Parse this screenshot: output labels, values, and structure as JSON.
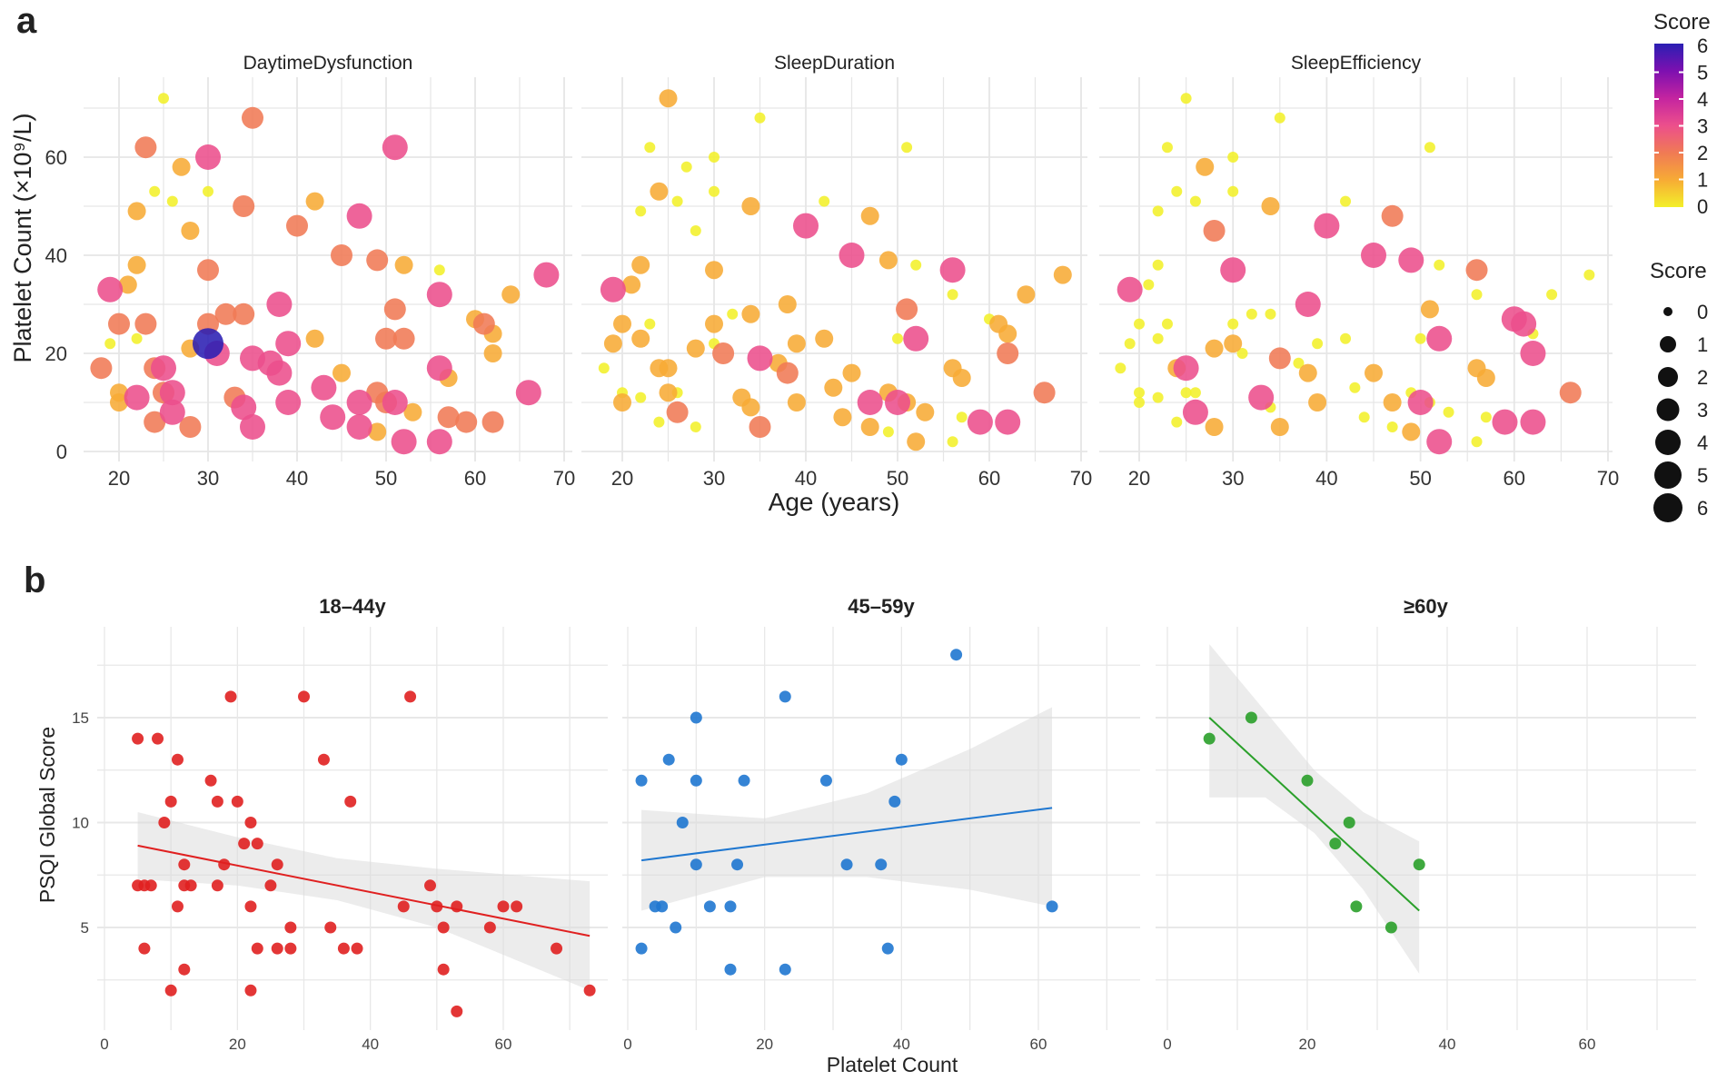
{
  "chart_data": [
    {
      "panel_label": "a",
      "type": "scatter",
      "xlabel": "Age (years)",
      "ylabel": "Platelet Count (×10⁹/L)",
      "xlim": [
        16,
        71
      ],
      "ylim": [
        -2,
        75
      ],
      "x_ticks": [
        20,
        30,
        40,
        50,
        60,
        70
      ],
      "y_ticks": [
        0,
        20,
        40,
        60
      ],
      "grid": true,
      "facets": [
        "DaytimeDysfunction",
        "SleepDuration",
        "SleepEfficiency"
      ],
      "points_age_platelet": [
        [
          25,
          72
        ],
        [
          35,
          68
        ],
        [
          23,
          62
        ],
        [
          51,
          62
        ],
        [
          30,
          60
        ],
        [
          27,
          58
        ],
        [
          24,
          53
        ],
        [
          30,
          53
        ],
        [
          26,
          51
        ],
        [
          22,
          49
        ],
        [
          34,
          50
        ],
        [
          42,
          51
        ],
        [
          47,
          48
        ],
        [
          28,
          45
        ],
        [
          40,
          46
        ],
        [
          45,
          40
        ],
        [
          49,
          39
        ],
        [
          52,
          38
        ],
        [
          22,
          38
        ],
        [
          30,
          37
        ],
        [
          56,
          37
        ],
        [
          68,
          36
        ],
        [
          21,
          34
        ],
        [
          19,
          33
        ],
        [
          56,
          32
        ],
        [
          64,
          32
        ],
        [
          38,
          30
        ],
        [
          51,
          29
        ],
        [
          32,
          28
        ],
        [
          34,
          28
        ],
        [
          20,
          26
        ],
        [
          23,
          26
        ],
        [
          30,
          26
        ],
        [
          60,
          27
        ],
        [
          61,
          26
        ],
        [
          62,
          24
        ],
        [
          42,
          23
        ],
        [
          50,
          23
        ],
        [
          52,
          23
        ],
        [
          19,
          22
        ],
        [
          22,
          23
        ],
        [
          28,
          21
        ],
        [
          30,
          22
        ],
        [
          31,
          20
        ],
        [
          39,
          22
        ],
        [
          62,
          20
        ],
        [
          18,
          17
        ],
        [
          24,
          17
        ],
        [
          25,
          17
        ],
        [
          35,
          19
        ],
        [
          37,
          18
        ],
        [
          38,
          16
        ],
        [
          56,
          17
        ],
        [
          45,
          16
        ],
        [
          57,
          15
        ],
        [
          20,
          12
        ],
        [
          20,
          10
        ],
        [
          22,
          11
        ],
        [
          25,
          12
        ],
        [
          26,
          12
        ],
        [
          33,
          11
        ],
        [
          43,
          13
        ],
        [
          49,
          12
        ],
        [
          66,
          12
        ],
        [
          34,
          9
        ],
        [
          39,
          10
        ],
        [
          47,
          10
        ],
        [
          50,
          10
        ],
        [
          51,
          10
        ],
        [
          26,
          8
        ],
        [
          53,
          8
        ],
        [
          44,
          7
        ],
        [
          57,
          7
        ],
        [
          59,
          6
        ],
        [
          62,
          6
        ],
        [
          24,
          6
        ],
        [
          28,
          5
        ],
        [
          35,
          5
        ],
        [
          47,
          5
        ],
        [
          49,
          4
        ],
        [
          52,
          2
        ],
        [
          56,
          2
        ]
      ],
      "scores": {
        "DaytimeDysfunction": [
          0,
          2,
          2,
          3,
          3,
          1,
          0,
          0,
          0,
          1,
          2,
          1,
          3,
          1,
          2,
          2,
          2,
          1,
          1,
          2,
          0,
          3,
          1,
          3,
          3,
          1,
          3,
          2,
          2,
          2,
          2,
          2,
          2,
          1,
          2,
          1,
          1,
          2,
          2,
          0,
          0,
          1,
          6,
          3,
          3,
          1,
          2,
          2,
          3,
          3,
          3,
          3,
          3,
          1,
          1,
          1,
          1,
          3,
          2,
          3,
          2,
          3,
          2,
          3,
          3,
          3,
          3,
          2,
          3,
          3,
          1,
          3,
          2,
          2,
          2,
          2,
          2,
          3,
          3,
          1,
          3,
          3
        ],
        "SleepDuration": [
          1,
          0,
          0,
          0,
          0,
          0,
          1,
          0,
          0,
          0,
          1,
          0,
          1,
          0,
          3,
          3,
          1,
          0,
          1,
          1,
          3,
          1,
          1,
          3,
          0,
          1,
          1,
          2,
          0,
          1,
          1,
          0,
          1,
          0,
          1,
          1,
          1,
          0,
          3,
          1,
          1,
          1,
          0,
          2,
          1,
          2,
          0,
          1,
          1,
          3,
          1,
          2,
          1,
          1,
          1,
          0,
          1,
          0,
          1,
          0,
          1,
          1,
          1,
          2,
          1,
          1,
          3,
          3,
          1,
          2,
          1,
          1,
          0,
          3,
          3,
          0,
          0,
          2,
          1,
          0,
          1,
          0
        ],
        "SleepEfficiency": [
          0,
          0,
          0,
          0,
          0,
          1,
          0,
          0,
          0,
          0,
          1,
          0,
          2,
          2,
          3,
          3,
          3,
          0,
          0,
          3,
          2,
          0,
          0,
          3,
          0,
          0,
          3,
          1,
          0,
          0,
          0,
          0,
          0,
          3,
          3,
          0,
          0,
          0,
          3,
          0,
          0,
          1,
          1,
          0,
          0,
          3,
          0,
          1,
          3,
          2,
          0,
          1,
          1,
          1,
          1,
          0,
          0,
          0,
          0,
          0,
          3,
          0,
          0,
          2,
          0,
          1,
          1,
          3,
          0,
          3,
          0,
          0,
          0,
          3,
          3,
          0,
          1,
          1,
          0,
          1,
          3,
          0
        ]
      },
      "color_legend": {
        "title": "Score",
        "ticks": [
          "6",
          "5",
          "4",
          "3",
          "2",
          "1",
          "0"
        ],
        "scale": [
          "#f3f02a",
          "#f7ab35",
          "#f07a55",
          "#ec4f8c",
          "#c424a0",
          "#7d10b0",
          "#2b1fb3"
        ],
        "placement": "right"
      },
      "size_legend": {
        "title": "Score",
        "labels": [
          "0",
          "1",
          "2",
          "3",
          "4",
          "5",
          "6"
        ],
        "placement": "right"
      }
    },
    {
      "panel_label": "b",
      "type": "scatter",
      "xlabel": "Platelet Count",
      "ylabel": "PSQI Global Score",
      "xlim": [
        -3,
        76
      ],
      "ylim": [
        0.3,
        19
      ],
      "x_ticks": [
        0,
        20,
        40,
        60
      ],
      "y_ticks": [
        5,
        10,
        15
      ],
      "grid": true,
      "facets": [
        {
          "title": "18–44y",
          "color": "#e02020",
          "points": [
            [
              5,
              14
            ],
            [
              8,
              14
            ],
            [
              19,
              16
            ],
            [
              30,
              16
            ],
            [
              46,
              16
            ],
            [
              11,
              13
            ],
            [
              33,
              13
            ],
            [
              16,
              12
            ],
            [
              10,
              11
            ],
            [
              17,
              11
            ],
            [
              20,
              11
            ],
            [
              37,
              11
            ],
            [
              9,
              10
            ],
            [
              22,
              10
            ],
            [
              21,
              9
            ],
            [
              23,
              9
            ],
            [
              12,
              8
            ],
            [
              18,
              8
            ],
            [
              26,
              8
            ],
            [
              5,
              7
            ],
            [
              6,
              7
            ],
            [
              7,
              7
            ],
            [
              12,
              7
            ],
            [
              13,
              7
            ],
            [
              17,
              7
            ],
            [
              25,
              7
            ],
            [
              49,
              7
            ],
            [
              11,
              6
            ],
            [
              22,
              6
            ],
            [
              45,
              6
            ],
            [
              50,
              6
            ],
            [
              53,
              6
            ],
            [
              60,
              6
            ],
            [
              62,
              6
            ],
            [
              28,
              5
            ],
            [
              34,
              5
            ],
            [
              51,
              5
            ],
            [
              58,
              5
            ],
            [
              6,
              4
            ],
            [
              23,
              4
            ],
            [
              26,
              4
            ],
            [
              28,
              4
            ],
            [
              36,
              4
            ],
            [
              38,
              4
            ],
            [
              68,
              4
            ],
            [
              12,
              3
            ],
            [
              51,
              3
            ],
            [
              10,
              2
            ],
            [
              22,
              2
            ],
            [
              73,
              2
            ],
            [
              53,
              1
            ]
          ],
          "fit": [
            [
              5,
              8.9
            ],
            [
              73,
              4.6
            ]
          ],
          "ci": [
            [
              5,
              7.3,
              10.5
            ],
            [
              20,
              7.0,
              9.3
            ],
            [
              35,
              6.3,
              8.3
            ],
            [
              50,
              5.0,
              7.8
            ],
            [
              73,
              2.0,
              7.2
            ]
          ]
        },
        {
          "title": "45–59y",
          "color": "#1f77d0",
          "points": [
            [
              48,
              18
            ],
            [
              23,
              16
            ],
            [
              10,
              15
            ],
            [
              6,
              13
            ],
            [
              40,
              13
            ],
            [
              2,
              12
            ],
            [
              10,
              12
            ],
            [
              17,
              12
            ],
            [
              29,
              12
            ],
            [
              39,
              11
            ],
            [
              8,
              10
            ],
            [
              10,
              8
            ],
            [
              16,
              8
            ],
            [
              32,
              8
            ],
            [
              37,
              8
            ],
            [
              4,
              6
            ],
            [
              5,
              6
            ],
            [
              12,
              6
            ],
            [
              15,
              6
            ],
            [
              62,
              6
            ],
            [
              7,
              5
            ],
            [
              2,
              4
            ],
            [
              38,
              4
            ],
            [
              15,
              3
            ],
            [
              23,
              3
            ]
          ],
          "fit": [
            [
              2,
              8.2
            ],
            [
              62,
              10.7
            ]
          ],
          "ci": [
            [
              2,
              5.8,
              10.6
            ],
            [
              20,
              7.4,
              10.2
            ],
            [
              35,
              7.4,
              11.4
            ],
            [
              50,
              6.8,
              13.5
            ],
            [
              62,
              6.0,
              15.5
            ]
          ]
        },
        {
          "title": "≥60y",
          "color": "#2aa02a",
          "points": [
            [
              6,
              14
            ],
            [
              12,
              15
            ],
            [
              20,
              12
            ],
            [
              26,
              10
            ],
            [
              24,
              9
            ],
            [
              36,
              8
            ],
            [
              27,
              6
            ],
            [
              32,
              5
            ]
          ],
          "fit": [
            [
              6,
              15
            ],
            [
              36,
              5.8
            ]
          ],
          "ci": [
            [
              6,
              11.2,
              18.5
            ],
            [
              14,
              11.2,
              15.3
            ],
            [
              21,
              9.5,
              12.5
            ],
            [
              28,
              6.8,
              10.5
            ],
            [
              36,
              2.8,
              9.1
            ]
          ]
        }
      ]
    }
  ]
}
